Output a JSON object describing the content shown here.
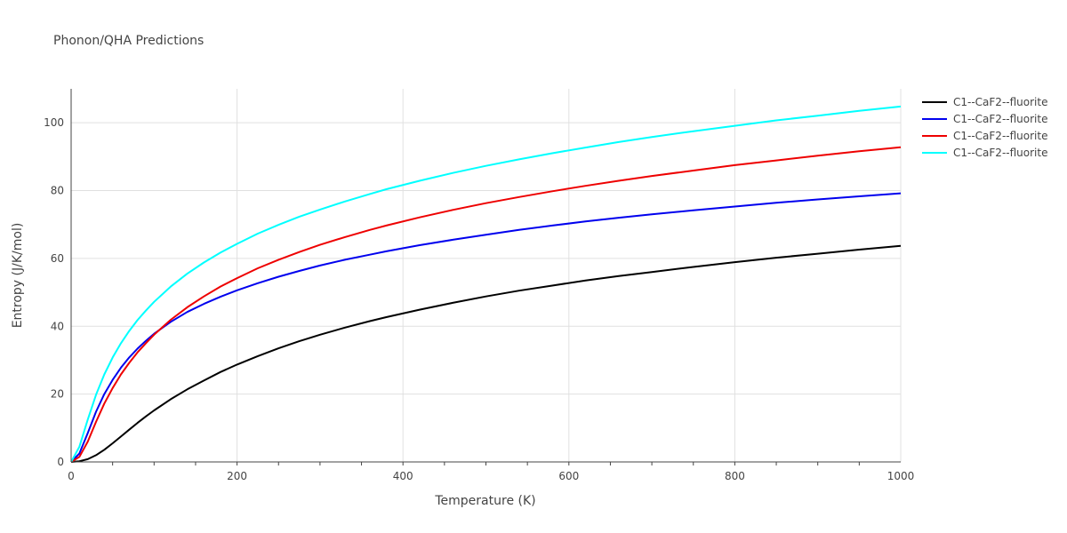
{
  "chart_data": {
    "type": "line",
    "title": "Phonon/QHA Predictions",
    "xlabel": "Temperature (K)",
    "ylabel": "Entropy (J/K/mol)",
    "xlim": [
      0,
      1000
    ],
    "ylim": [
      0,
      110
    ],
    "x_ticks": [
      0,
      200,
      400,
      600,
      800,
      1000
    ],
    "y_ticks": [
      0,
      20,
      40,
      60,
      80,
      100
    ],
    "x_tick_labels": [
      "0",
      "200",
      "400",
      "600",
      "800",
      "1000"
    ],
    "y_tick_labels": [
      "0",
      "20",
      "40",
      "60",
      "80",
      "100"
    ],
    "grid": true,
    "legend": "top-right",
    "series": [
      {
        "name": "C1--CaF2--fluorite",
        "color": "#000000",
        "x": [
          0,
          10,
          20,
          30,
          40,
          50,
          60,
          70,
          80,
          90,
          100,
          120,
          140,
          160,
          180,
          200,
          225,
          250,
          275,
          300,
          330,
          360,
          380,
          420,
          460,
          500,
          540,
          580,
          620,
          660,
          700,
          750,
          800,
          850,
          900,
          950,
          1000
        ],
        "y": [
          0,
          0.2,
          0.8,
          2.0,
          3.6,
          5.5,
          7.5,
          9.5,
          11.5,
          13.4,
          15.2,
          18.5,
          21.4,
          24.0,
          26.5,
          28.7,
          31.2,
          33.5,
          35.6,
          37.5,
          39.6,
          41.5,
          42.7,
          44.9,
          46.9,
          48.8,
          50.5,
          52.0,
          53.5,
          54.8,
          56.0,
          57.5,
          58.9,
          60.2,
          61.4,
          62.6,
          63.7
        ]
      },
      {
        "name": "C1--CaF2--fluorite",
        "color": "#0000ee",
        "x": [
          0,
          10,
          20,
          30,
          40,
          50,
          60,
          70,
          80,
          90,
          100,
          120,
          140,
          160,
          180,
          200,
          225,
          250,
          275,
          300,
          330,
          360,
          380,
          420,
          460,
          500,
          540,
          580,
          620,
          660,
          700,
          750,
          800,
          850,
          900,
          950,
          1000
        ],
        "y": [
          0,
          2.5,
          8.5,
          14.8,
          20.0,
          24.2,
          27.8,
          30.8,
          33.4,
          35.7,
          37.8,
          41.3,
          44.2,
          46.6,
          48.7,
          50.6,
          52.7,
          54.6,
          56.3,
          57.9,
          59.6,
          61.1,
          62.1,
          63.9,
          65.5,
          67.0,
          68.4,
          69.7,
          70.9,
          72.0,
          73.0,
          74.2,
          75.3,
          76.4,
          77.4,
          78.3,
          79.2
        ]
      },
      {
        "name": "C1--CaF2--fluorite",
        "color": "#ee0000",
        "x": [
          0,
          10,
          20,
          30,
          40,
          50,
          60,
          70,
          80,
          90,
          100,
          120,
          140,
          160,
          180,
          200,
          225,
          250,
          275,
          300,
          330,
          360,
          380,
          420,
          460,
          500,
          540,
          580,
          620,
          660,
          700,
          750,
          800,
          850,
          900,
          950,
          1000
        ],
        "y": [
          0,
          1.5,
          6.0,
          11.8,
          17.2,
          21.8,
          25.8,
          29.2,
          32.3,
          35.0,
          37.5,
          41.9,
          45.6,
          48.8,
          51.7,
          54.2,
          57.1,
          59.6,
          61.9,
          64.0,
          66.3,
          68.4,
          69.7,
          72.1,
          74.3,
          76.3,
          78.1,
          79.8,
          81.4,
          82.9,
          84.3,
          85.9,
          87.5,
          88.9,
          90.3,
          91.6,
          92.8
        ]
      },
      {
        "name": "C1--CaF2--fluorite",
        "color": "#00ffff",
        "x": [
          0,
          10,
          20,
          30,
          40,
          50,
          60,
          70,
          80,
          90,
          100,
          120,
          140,
          160,
          180,
          200,
          225,
          250,
          275,
          300,
          330,
          360,
          380,
          420,
          460,
          500,
          540,
          580,
          620,
          660,
          700,
          750,
          800,
          850,
          900,
          950,
          1000
        ],
        "y": [
          0,
          4.5,
          12.5,
          19.8,
          25.8,
          30.8,
          35.0,
          38.6,
          41.8,
          44.6,
          47.2,
          51.7,
          55.5,
          58.8,
          61.7,
          64.3,
          67.3,
          69.9,
          72.3,
          74.4,
          76.8,
          79.0,
          80.4,
          82.9,
          85.2,
          87.3,
          89.2,
          91.0,
          92.7,
          94.3,
          95.8,
          97.5,
          99.1,
          100.7,
          102.1,
          103.5,
          104.8
        ]
      }
    ]
  }
}
